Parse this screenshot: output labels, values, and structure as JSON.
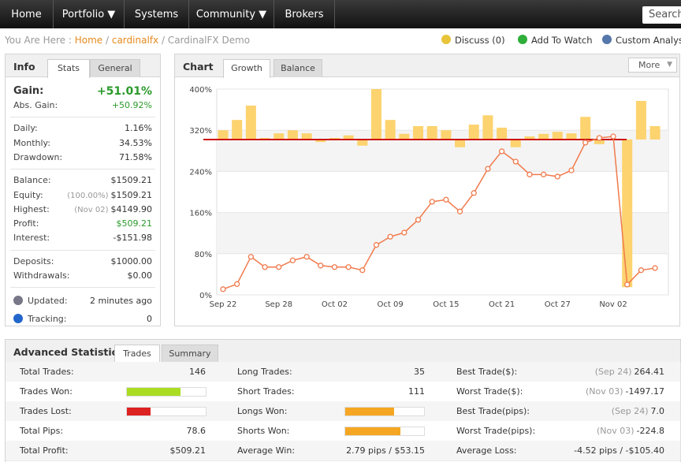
{
  "nav": {
    "items": [
      "Home",
      "Portfolio ▼",
      "Systems",
      "Community ▼",
      "Brokers"
    ],
    "search": "Search"
  },
  "breadcrumb": {
    "prefix": "You Are Here :",
    "home": "Home",
    "sep1": "/",
    "user": "cardinalfx",
    "sep2": "/",
    "current": "CardinalFX Demo"
  },
  "actions": [
    "Discuss (0)",
    "Add To Watch",
    "Custom Analysis"
  ],
  "info": {
    "title": "Info",
    "tabs": [
      "Stats",
      "General"
    ],
    "gain": {
      "label": "Gain:",
      "value": "+51.01%"
    },
    "groups": [
      [
        {
          "label": "Abs. Gain:",
          "value": "+50.92%",
          "green": true
        }
      ],
      [
        {
          "label": "Daily:",
          "value": "1.16%"
        },
        {
          "label": "Monthly:",
          "value": "34.53%"
        },
        {
          "label": "Drawdown:",
          "value": "71.58%"
        }
      ],
      [
        {
          "label": "Balance:",
          "value": "$1509.21"
        },
        {
          "label": "Equity:",
          "note": "(100.00%)",
          "value": "$1509.21"
        },
        {
          "label": "Highest:",
          "note": "(Nov 02)",
          "value": "$4149.90"
        },
        {
          "label": "Profit:",
          "value": "$509.21",
          "green": true
        },
        {
          "label": "Interest:",
          "value": "-$151.98"
        }
      ],
      [
        {
          "label": "Deposits:",
          "value": "$1000.00"
        },
        {
          "label": "Withdrawals:",
          "value": "$0.00"
        }
      ],
      [
        {
          "label": "Updated:",
          "value": "2 minutes ago"
        },
        {
          "label": "Tracking:",
          "value": "0"
        }
      ]
    ]
  },
  "chart_panel": {
    "title": "Chart",
    "tabs": [
      "Growth",
      "Balance"
    ],
    "more": "More"
  },
  "chart_data": {
    "type": "bar-line",
    "categories": [
      "Sep 22",
      null,
      null,
      null,
      "Sep 28",
      null,
      null,
      null,
      "Oct 02",
      null,
      null,
      null,
      "Oct 09",
      null,
      null,
      null,
      "Oct 15",
      null,
      null,
      null,
      "Oct 21",
      null,
      null,
      null,
      "Oct 27",
      null,
      null,
      null,
      "Nov 02",
      null,
      null,
      null
    ],
    "ylim": [
      0,
      400
    ],
    "yticks": [
      {
        "value": 0,
        "label": "0%"
      },
      {
        "value": 80,
        "label": "80%"
      },
      {
        "value": 160,
        "label": "160%"
      },
      {
        "value": 240,
        "label": "240%"
      },
      {
        "value": 320,
        "label": "320%"
      },
      {
        "value": 400,
        "label": "400%"
      }
    ],
    "baseline": 302,
    "baseline_color": "#cc1111",
    "series": [
      {
        "type": "bar",
        "color": "#fcd36e",
        "values": [
          320,
          340,
          368,
          305,
          314,
          320,
          314,
          297,
          305,
          310,
          290,
          400,
          340,
          313,
          328,
          328,
          320,
          287,
          331,
          349,
          325,
          287,
          308,
          313,
          317,
          314,
          346,
          293,
          303,
          15,
          377,
          328
        ]
      },
      {
        "type": "line",
        "color": "#f07a4c",
        "values": [
          11,
          21,
          74,
          54,
          54,
          67,
          74,
          57,
          54,
          54,
          48,
          97,
          113,
          121,
          146,
          181,
          185,
          162,
          198,
          245,
          279,
          259,
          234,
          234,
          230,
          242,
          296,
          305,
          308,
          20,
          48,
          52
        ]
      }
    ]
  },
  "advanced": {
    "title": "Advanced Statistics",
    "tabs": [
      "Trades",
      "Summary"
    ],
    "columns": [
      [
        {
          "label": "Total Trades:",
          "value": "146"
        },
        {
          "label": "Trades Won:",
          "bar": 68,
          "color": "#aadd22"
        },
        {
          "label": "Trades Lost:",
          "bar": 30,
          "color": "#dd2222"
        },
        {
          "label": "Total Pips:",
          "value": "78.6"
        },
        {
          "label": "Total Profit:",
          "value": "$509.21"
        }
      ],
      [
        {
          "label": "Long Trades:",
          "value": "35"
        },
        {
          "label": "Short Trades:",
          "value": "111"
        },
        {
          "label": "Longs Won:",
          "bar": 62,
          "color": "#f5a623"
        },
        {
          "label": "Shorts Won:",
          "bar": 70,
          "color": "#f5a623"
        },
        {
          "label": "Average Win:",
          "value": "2.79 pips / $53.15"
        }
      ],
      [
        {
          "label": "Best Trade($):",
          "note": "(Sep 24)",
          "value": "264.41"
        },
        {
          "label": "Worst Trade($):",
          "note": "(Nov 03)",
          "value": "-1497.17"
        },
        {
          "label": "Best Trade(pips):",
          "note": "(Sep 24)",
          "value": "7.0"
        },
        {
          "label": "Worst Trade(pips):",
          "note": "(Nov 03)",
          "value": "-224.8"
        },
        {
          "label": "Average Loss:",
          "value": "-4.52 pips / -$105.40"
        }
      ]
    ]
  }
}
